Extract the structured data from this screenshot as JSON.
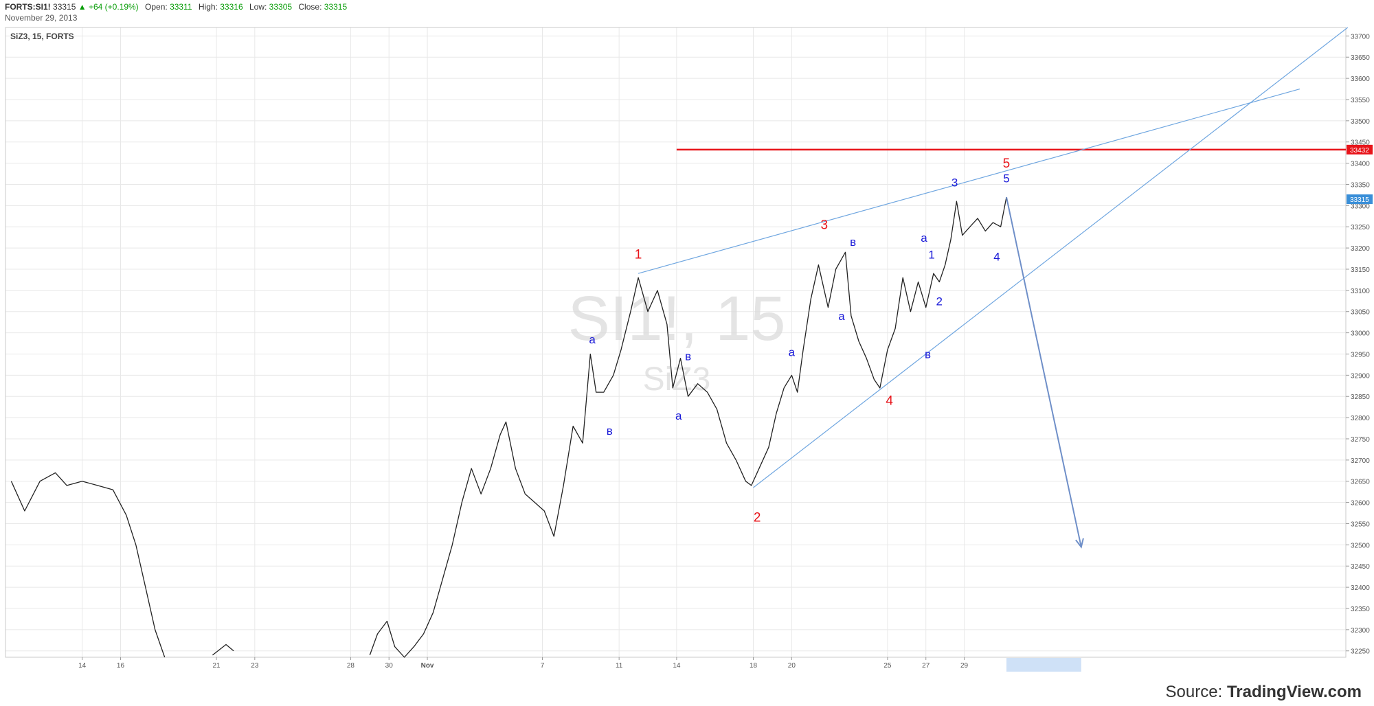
{
  "header": {
    "symbol": "FORTS:SI1!",
    "last": "33315",
    "change": "▲ +64 (+0.19%)",
    "open_label": "Open:",
    "open": "33311",
    "high_label": "High:",
    "high": "33316",
    "low_label": "Low:",
    "low": "33305",
    "close_label": "Close:",
    "close": "33315",
    "date": "November 29, 2013"
  },
  "source": {
    "prefix": "Source: ",
    "brand": "TradingView.com"
  },
  "colors": {
    "axis_text": "#555555",
    "grid": "#e8e8e8",
    "trend": "#6fa6e0",
    "wave_red": "#e8141a",
    "wave_blue": "#1a1ad8",
    "arrow": "#6f8fc8",
    "tag_red": "#e8141a",
    "tag_blue": "#3a8fd8"
  },
  "chart_data": {
    "type": "line",
    "title": "SiZ3, 15, FORTS",
    "watermark": {
      "line1": "SI1!, 15",
      "line2": "SiZ3"
    },
    "ylim": [
      32235,
      33720
    ],
    "x_ticks": [
      {
        "day": 14,
        "label": "14"
      },
      {
        "day": 16,
        "label": "16"
      },
      {
        "day": 21,
        "label": "21"
      },
      {
        "day": 23,
        "label": "23"
      },
      {
        "day": 28,
        "label": "28"
      },
      {
        "day": 30,
        "label": "30"
      },
      {
        "day": 32,
        "label": "Nov"
      },
      {
        "day": 38,
        "label": "7"
      },
      {
        "day": 42,
        "label": "11"
      },
      {
        "day": 45,
        "label": "14"
      },
      {
        "day": 49,
        "label": "18"
      },
      {
        "day": 51,
        "label": "20"
      },
      {
        "day": 56,
        "label": "25"
      },
      {
        "day": 58,
        "label": "27"
      },
      {
        "day": 60,
        "label": "29"
      }
    ],
    "y_ticks": [
      32250,
      32300,
      32350,
      32400,
      32450,
      32500,
      32550,
      32600,
      32650,
      32700,
      32750,
      32800,
      32850,
      32900,
      32950,
      33000,
      33050,
      33100,
      33150,
      33200,
      33250,
      33300,
      33350,
      33400,
      33450,
      33500,
      33550,
      33600,
      33650,
      33700
    ],
    "series": [
      {
        "values": [
          [
            10.3,
            32650
          ],
          [
            11.0,
            32580
          ],
          [
            11.8,
            32650
          ],
          [
            12.6,
            32670
          ],
          [
            13.2,
            32640
          ],
          [
            14.0,
            32650
          ],
          [
            14.8,
            32640
          ],
          [
            15.6,
            32630
          ],
          [
            16.3,
            32570
          ],
          [
            16.8,
            32500
          ],
          [
            17.3,
            32400
          ],
          [
            17.8,
            32300
          ],
          [
            18.3,
            32235
          ],
          [
            20.8,
            32240
          ],
          [
            21.5,
            32265
          ],
          [
            21.9,
            32250
          ],
          [
            29.0,
            32240
          ],
          [
            29.4,
            32290
          ],
          [
            29.9,
            32320
          ],
          [
            30.3,
            32260
          ],
          [
            30.8,
            32235
          ],
          [
            31.3,
            32260
          ],
          [
            31.8,
            32290
          ],
          [
            32.3,
            32340
          ],
          [
            32.8,
            32420
          ],
          [
            33.3,
            32500
          ],
          [
            33.8,
            32600
          ],
          [
            34.3,
            32680
          ],
          [
            34.8,
            32620
          ],
          [
            35.3,
            32680
          ],
          [
            35.8,
            32760
          ],
          [
            36.1,
            32790
          ],
          [
            36.6,
            32680
          ],
          [
            37.1,
            32620
          ],
          [
            37.6,
            32600
          ],
          [
            38.1,
            32580
          ],
          [
            38.6,
            32520
          ],
          [
            39.1,
            32640
          ],
          [
            39.6,
            32780
          ],
          [
            40.1,
            32740
          ],
          [
            40.5,
            32950
          ],
          [
            40.8,
            32860
          ],
          [
            41.2,
            32860
          ],
          [
            41.7,
            32900
          ],
          [
            42.1,
            32960
          ],
          [
            42.6,
            33050
          ],
          [
            43.0,
            33130
          ],
          [
            43.5,
            33050
          ],
          [
            44.0,
            33100
          ],
          [
            44.5,
            33020
          ],
          [
            44.8,
            32870
          ],
          [
            45.2,
            32940
          ],
          [
            45.6,
            32850
          ],
          [
            46.1,
            32880
          ],
          [
            46.6,
            32860
          ],
          [
            47.1,
            32820
          ],
          [
            47.6,
            32740
          ],
          [
            48.1,
            32700
          ],
          [
            48.6,
            32650
          ],
          [
            48.9,
            32640
          ],
          [
            49.3,
            32680
          ],
          [
            49.8,
            32730
          ],
          [
            50.2,
            32810
          ],
          [
            50.6,
            32870
          ],
          [
            51.0,
            32900
          ],
          [
            51.3,
            32860
          ],
          [
            51.6,
            32960
          ],
          [
            52.0,
            33080
          ],
          [
            52.4,
            33160
          ],
          [
            52.9,
            33060
          ],
          [
            53.3,
            33150
          ],
          [
            53.8,
            33190
          ],
          [
            54.1,
            33040
          ],
          [
            54.5,
            32980
          ],
          [
            54.9,
            32940
          ],
          [
            55.3,
            32890
          ],
          [
            55.6,
            32870
          ],
          [
            56.0,
            32960
          ],
          [
            56.4,
            33010
          ],
          [
            56.8,
            33130
          ],
          [
            57.2,
            33050
          ],
          [
            57.6,
            33120
          ],
          [
            58.0,
            33060
          ],
          [
            58.4,
            33140
          ],
          [
            58.7,
            33120
          ],
          [
            59.0,
            33160
          ],
          [
            59.3,
            33220
          ],
          [
            59.6,
            33310
          ],
          [
            59.9,
            33230
          ],
          [
            60.3,
            33250
          ],
          [
            60.7,
            33270
          ],
          [
            61.1,
            33240
          ],
          [
            61.5,
            33260
          ],
          [
            61.9,
            33250
          ],
          [
            62.2,
            33320
          ]
        ]
      }
    ],
    "horizontal_level": {
      "value": 33432,
      "from_day": 45.0,
      "label": "33432"
    },
    "last_price": {
      "value": 33315,
      "label": "33315"
    },
    "trend_lines": [
      {
        "from": [
          43.0,
          33140
        ],
        "to": [
          77.5,
          33575
        ]
      },
      {
        "from": [
          49.0,
          32635
        ],
        "to": [
          80.0,
          33720
        ]
      }
    ],
    "forecast_arrow": {
      "from": [
        62.2,
        33320
      ],
      "to": [
        66.1,
        32495
      ]
    },
    "future_band": {
      "from_day": 62.2,
      "to_day": 66.1
    },
    "wave_labels": [
      {
        "t": "1",
        "day": 43.0,
        "price": 33175,
        "c": "red"
      },
      {
        "t": "2",
        "day": 49.2,
        "price": 32555,
        "c": "red"
      },
      {
        "t": "3",
        "day": 52.7,
        "price": 33245,
        "c": "red"
      },
      {
        "t": "4",
        "day": 56.1,
        "price": 32830,
        "c": "red"
      },
      {
        "t": "5",
        "day": 62.2,
        "price": 33390,
        "c": "red"
      },
      {
        "t": "а",
        "day": 40.6,
        "price": 32975,
        "c": "blue"
      },
      {
        "t": "в",
        "day": 41.5,
        "price": 32760,
        "c": "blue"
      },
      {
        "t": "а",
        "day": 45.1,
        "price": 32795,
        "c": "blue"
      },
      {
        "t": "в",
        "day": 45.6,
        "price": 32935,
        "c": "blue"
      },
      {
        "t": "а",
        "day": 51.0,
        "price": 32945,
        "c": "blue"
      },
      {
        "t": "а",
        "day": 53.6,
        "price": 33030,
        "c": "blue"
      },
      {
        "t": "в",
        "day": 54.2,
        "price": 33205,
        "c": "blue"
      },
      {
        "t": "в",
        "day": 58.1,
        "price": 32940,
        "c": "blue"
      },
      {
        "t": "а",
        "day": 57.9,
        "price": 33215,
        "c": "blue"
      },
      {
        "t": "1",
        "day": 58.3,
        "price": 33175,
        "c": "blue"
      },
      {
        "t": "2",
        "day": 58.7,
        "price": 33065,
        "c": "blue"
      },
      {
        "t": "3",
        "day": 59.5,
        "price": 33345,
        "c": "blue"
      },
      {
        "t": "4",
        "day": 61.7,
        "price": 33170,
        "c": "blue"
      },
      {
        "t": "5",
        "day": 62.2,
        "price": 33355,
        "c": "blue"
      }
    ]
  }
}
